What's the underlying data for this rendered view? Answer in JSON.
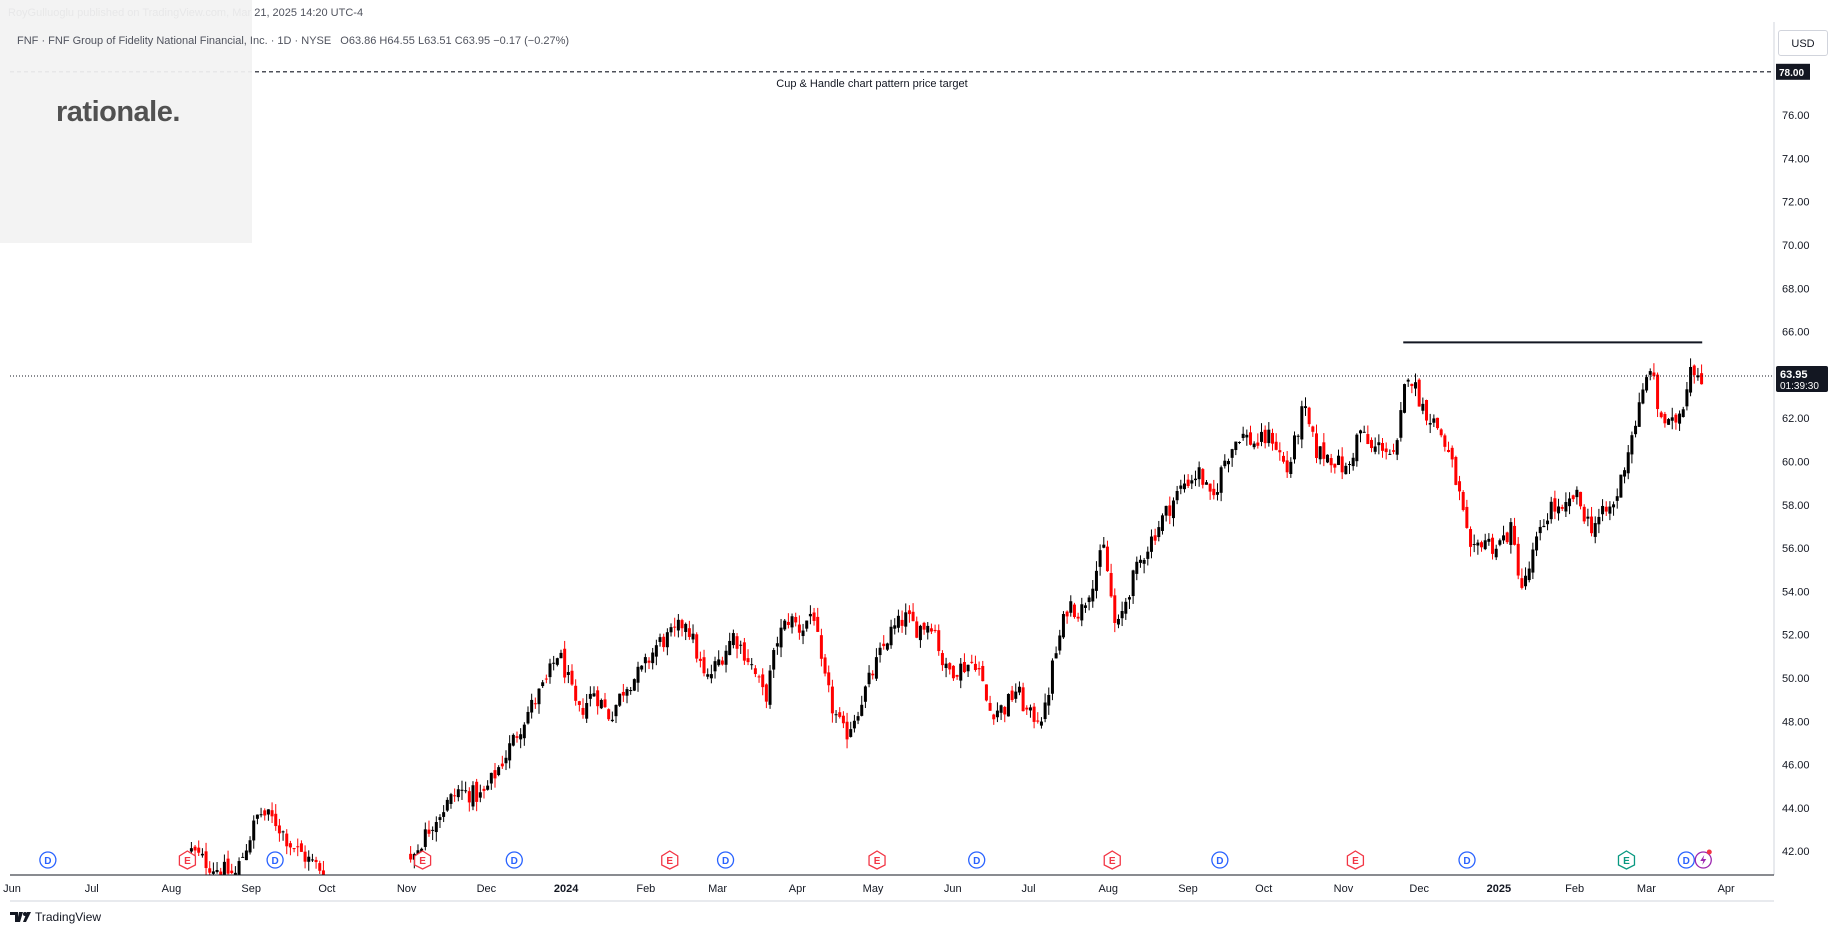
{
  "header": {
    "published": "RoyGulluoglu published on TradingView.com, Mar 21, 2025 14:20 UTC-4"
  },
  "legend": {
    "symbol": "FNF · FNF Group of Fidelity National Financial, Inc. · 1D · NYSE",
    "open": "O63.86",
    "high": "H64.55",
    "low": "L63.51",
    "close": "C63.95",
    "change": "−0.17 (−0.27%)"
  },
  "watermark": {
    "logo_text": "rationale."
  },
  "price_axis": {
    "currency": "USD"
  },
  "footer": {
    "brand": "TradingView"
  },
  "colors": {
    "up": "#000000",
    "down": "#ff0000",
    "dividend": "#2962ff",
    "earnings_past": "#f23645",
    "earnings_next": "#089981",
    "target_line": "#131722",
    "current_price_line": "#131722"
  },
  "chart_data": {
    "type": "candlestick",
    "y_ticks": [
      42,
      44,
      46,
      48,
      50,
      52,
      54,
      56,
      58,
      60,
      62,
      64,
      66,
      68,
      70,
      72,
      74,
      76
    ],
    "y_tick_labels": [
      "42.00",
      "44.00",
      "46.00",
      "48.00",
      "50.00",
      "52.00",
      "54.00",
      "56.00",
      "58.00",
      "60.00",
      "62.00",
      "64.00",
      "66.00",
      "68.00",
      "70.00",
      "72.00",
      "74.00",
      "76.00"
    ],
    "ylim": [
      40.9,
      80.3
    ],
    "x_ticks": [
      {
        "label": "Jun",
        "pos": 0.0
      },
      {
        "label": "Jul",
        "pos": 1.0
      },
      {
        "label": "Aug",
        "pos": 2.0
      },
      {
        "label": "Sep",
        "pos": 3.0
      },
      {
        "label": "Oct",
        "pos": 3.95
      },
      {
        "label": "Nov",
        "pos": 4.95
      },
      {
        "label": "Dec",
        "pos": 5.95
      },
      {
        "label": "2024",
        "pos": 6.95,
        "bold": true
      },
      {
        "label": "Feb",
        "pos": 7.95
      },
      {
        "label": "Mar",
        "pos": 8.85
      },
      {
        "label": "Apr",
        "pos": 9.85
      },
      {
        "label": "May",
        "pos": 10.8
      },
      {
        "label": "Jun",
        "pos": 11.8
      },
      {
        "label": "Jul",
        "pos": 12.75
      },
      {
        "label": "Aug",
        "pos": 13.75
      },
      {
        "label": "Sep",
        "pos": 14.75
      },
      {
        "label": "Oct",
        "pos": 15.7
      },
      {
        "label": "Nov",
        "pos": 16.7
      },
      {
        "label": "Dec",
        "pos": 17.65
      },
      {
        "label": "2025",
        "pos": 18.65,
        "bold": true
      },
      {
        "label": "Feb",
        "pos": 19.6
      },
      {
        "label": "Mar",
        "pos": 20.5
      },
      {
        "label": "Apr",
        "pos": 21.5
      }
    ],
    "xlim": [
      0.0,
      22.0
    ],
    "price_path": [
      [
        2.25,
        42.0
      ],
      [
        2.5,
        41.3
      ],
      [
        2.8,
        40.9
      ],
      [
        3.1,
        43.8
      ],
      [
        3.3,
        43.4
      ],
      [
        3.5,
        42.3
      ],
      [
        3.75,
        41.5
      ],
      [
        3.95,
        41.0
      ],
      [
        5.0,
        41.6
      ],
      [
        5.3,
        43.5
      ],
      [
        5.6,
        44.8
      ],
      [
        5.9,
        44.5
      ],
      [
        6.2,
        46.5
      ],
      [
        6.45,
        48.3
      ],
      [
        6.7,
        49.8
      ],
      [
        6.85,
        51.2
      ],
      [
        6.95,
        50.2
      ],
      [
        7.1,
        48.3
      ],
      [
        7.3,
        49.4
      ],
      [
        7.5,
        48.2
      ],
      [
        7.7,
        49.7
      ],
      [
        7.9,
        50.3
      ],
      [
        8.1,
        51.6
      ],
      [
        8.3,
        52.0
      ],
      [
        8.45,
        52.7
      ],
      [
        8.55,
        51.6
      ],
      [
        8.7,
        49.8
      ],
      [
        8.9,
        51.0
      ],
      [
        9.05,
        52.0
      ],
      [
        9.25,
        50.8
      ],
      [
        9.45,
        49.0
      ],
      [
        9.6,
        51.8
      ],
      [
        9.75,
        52.8
      ],
      [
        9.9,
        52.2
      ],
      [
        10.05,
        53.2
      ],
      [
        10.15,
        50.5
      ],
      [
        10.3,
        48.5
      ],
      [
        10.45,
        47.3
      ],
      [
        10.6,
        48.5
      ],
      [
        10.8,
        50.3
      ],
      [
        11.0,
        52.0
      ],
      [
        11.2,
        52.8
      ],
      [
        11.35,
        52.3
      ],
      [
        11.55,
        52.6
      ],
      [
        11.7,
        50.3
      ],
      [
        11.9,
        50.5
      ],
      [
        12.1,
        50.8
      ],
      [
        12.25,
        48.5
      ],
      [
        12.45,
        48.6
      ],
      [
        12.6,
        49.5
      ],
      [
        12.75,
        48.2
      ],
      [
        12.95,
        48.3
      ],
      [
        13.05,
        50.5
      ],
      [
        13.25,
        53.5
      ],
      [
        13.4,
        53.0
      ],
      [
        13.55,
        54.5
      ],
      [
        13.7,
        56.0
      ],
      [
        13.85,
        52.0
      ],
      [
        14.0,
        54.0
      ],
      [
        14.2,
        55.8
      ],
      [
        14.45,
        57.5
      ],
      [
        14.7,
        59.0
      ],
      [
        14.9,
        59.5
      ],
      [
        15.05,
        58.0
      ],
      [
        15.2,
        60.0
      ],
      [
        15.4,
        61.3
      ],
      [
        15.6,
        60.8
      ],
      [
        15.8,
        61.2
      ],
      [
        16.0,
        59.5
      ],
      [
        16.2,
        62.5
      ],
      [
        16.35,
        60.5
      ],
      [
        16.55,
        60.2
      ],
      [
        16.75,
        59.5
      ],
      [
        16.9,
        61.5
      ],
      [
        17.05,
        60.5
      ],
      [
        17.2,
        60.8
      ],
      [
        17.35,
        60.0
      ],
      [
        17.5,
        64.3
      ],
      [
        17.7,
        62.5
      ],
      [
        17.9,
        61.5
      ],
      [
        18.05,
        60.0
      ],
      [
        18.15,
        58.5
      ],
      [
        18.3,
        55.5
      ],
      [
        18.45,
        56.5
      ],
      [
        18.6,
        56.0
      ],
      [
        18.8,
        56.8
      ],
      [
        18.95,
        54.0
      ],
      [
        19.1,
        56.0
      ],
      [
        19.3,
        58.0
      ],
      [
        19.45,
        57.5
      ],
      [
        19.6,
        58.5
      ],
      [
        19.8,
        57.0
      ],
      [
        19.95,
        57.5
      ],
      [
        20.1,
        58.0
      ],
      [
        20.3,
        61.0
      ],
      [
        20.45,
        63.0
      ],
      [
        20.55,
        64.5
      ],
      [
        20.65,
        62.3
      ],
      [
        20.8,
        61.5
      ],
      [
        20.95,
        62.5
      ],
      [
        21.05,
        64.5
      ],
      [
        21.2,
        63.95
      ]
    ],
    "resistance_line": {
      "x": [
        17.45,
        21.2
      ],
      "y": 65.5
    },
    "current_price": 63.95,
    "current_price_label": "63.95",
    "countdown": "01:39:30",
    "target": {
      "price": 78.0,
      "label": "78.00",
      "annotation": "Cup & Handle chart pattern price target"
    },
    "event_markers": [
      {
        "type": "D",
        "pos": 0.45
      },
      {
        "type": "E",
        "pos": 2.2
      },
      {
        "type": "D",
        "pos": 3.3
      },
      {
        "type": "E",
        "pos": 5.15
      },
      {
        "type": "D",
        "pos": 6.3
      },
      {
        "type": "E",
        "pos": 8.25
      },
      {
        "type": "D",
        "pos": 8.95
      },
      {
        "type": "E",
        "pos": 10.85
      },
      {
        "type": "D",
        "pos": 12.1
      },
      {
        "type": "E",
        "pos": 13.8
      },
      {
        "type": "D",
        "pos": 15.15
      },
      {
        "type": "E",
        "pos": 16.85
      },
      {
        "type": "D",
        "pos": 18.25
      },
      {
        "type": "E_next",
        "pos": 20.25
      },
      {
        "type": "D",
        "pos": 21.0
      }
    ]
  }
}
